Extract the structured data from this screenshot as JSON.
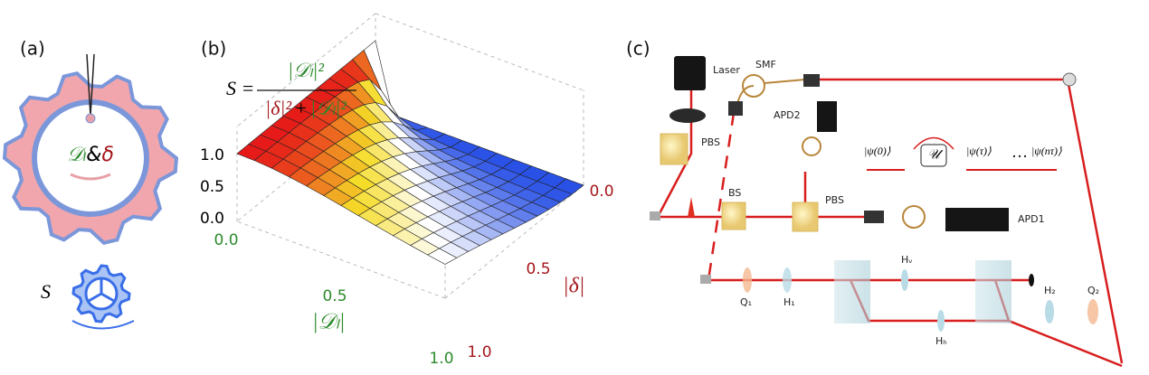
{
  "panel_a": {
    "label": "(a)",
    "gear_d": "𝒟ₗ",
    "gear_amp": "&",
    "gear_delta": "δ",
    "small_gear_label": "S"
  },
  "panel_b": {
    "label": "(b)",
    "formula": {
      "lhs": "S =",
      "numerator": "|𝒟ₗ|²",
      "den_delta": "|δ|²",
      "den_plus": "+",
      "den_d": "|𝒟ₗ|²"
    },
    "z_ticks": [
      "1.0",
      "0.5",
      "0.0"
    ],
    "d_ticks": [
      "0.0",
      "0.5",
      "1.0"
    ],
    "d_axis_label": "|𝒟ₗ|",
    "delta_ticks": [
      "0.0",
      "0.5",
      "1.0"
    ],
    "delta_axis_label": "|δ|"
  },
  "panel_c": {
    "label": "(c)",
    "laser": "Laser",
    "smf": "SMF",
    "apd2": "APD2",
    "pbs_top": "PBS",
    "bs": "BS",
    "pbs_mid": "PBS",
    "apd1": "APD1",
    "psi0": "|ψ(0)⟩",
    "unitary": "𝒰",
    "psi_tau": "|ψ(τ)⟩",
    "dots": "…",
    "psi_ntau": "|ψ(nτ)⟩",
    "q1": "Q₁",
    "h1": "H₁",
    "hv": "Hᵥ",
    "hh": "Hₕ",
    "h2": "H₂",
    "q2": "Q₂"
  }
}
